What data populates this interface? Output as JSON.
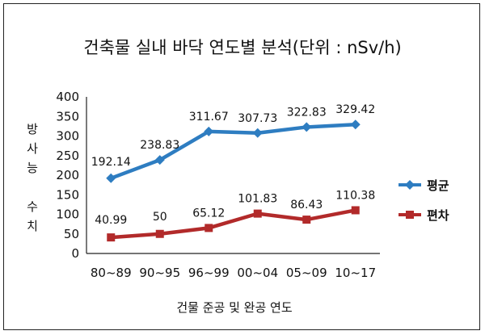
{
  "chart_data": {
    "type": "line",
    "title": "건축물 실내 바닥 연도별 분석(단위 : nSv/h)",
    "xlabel": "건물 준공 및 완공 연도",
    "ylabel": [
      "방",
      "사",
      "능",
      "수",
      "치"
    ],
    "categories": [
      "80~89",
      "90~95",
      "96~99",
      "00~04",
      "05~09",
      "10~17"
    ],
    "ylim": [
      0,
      400
    ],
    "yticks": [
      "0",
      "50",
      "100",
      "150",
      "200",
      "250",
      "300",
      "350",
      "400"
    ],
    "grid": false,
    "legend_position": "right",
    "series": [
      {
        "name": "평균",
        "color": "#2e7dc1",
        "marker": "diamond",
        "values": [
          192.14,
          238.83,
          311.67,
          307.73,
          322.83,
          329.42
        ],
        "labels": [
          "192.14",
          "238.83",
          "311.67",
          "307.73",
          "322.83",
          "329.42"
        ]
      },
      {
        "name": "편차",
        "color": "#b22a2a",
        "marker": "square",
        "values": [
          40.99,
          50,
          65.12,
          101.83,
          86.43,
          110.38
        ],
        "labels": [
          "40.99",
          "50",
          "65.12",
          "101.83",
          "86.43",
          "110.38"
        ]
      }
    ]
  }
}
